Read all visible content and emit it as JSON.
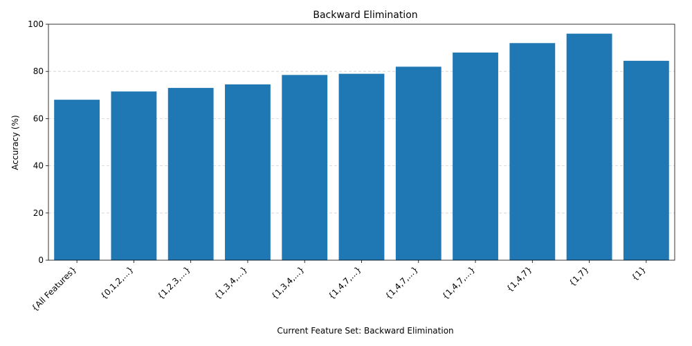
{
  "chart_data": {
    "type": "bar",
    "title": "Backward Elimination",
    "xlabel": "Current Feature Set:  Backward Elimination",
    "ylabel": "Accuracy (%)",
    "ylim": [
      0,
      100
    ],
    "yticks": [
      0,
      20,
      40,
      60,
      80,
      100
    ],
    "grid": "y-dashed",
    "categories": [
      "{All Features}",
      "{0,1,2,...}",
      "{1,2,3,...}",
      "{1,3,4,...}",
      "{1,3,4,...}",
      "{1,4,7,...}",
      "{1,4,7,...}",
      "{1,4,7,...}",
      "{1,4,7}",
      "{1,7}",
      "{1}"
    ],
    "values": [
      68.0,
      71.5,
      73.0,
      74.5,
      78.5,
      79.0,
      82.0,
      88.0,
      92.0,
      96.0,
      84.5
    ],
    "bar_color": "#1f77b4"
  }
}
